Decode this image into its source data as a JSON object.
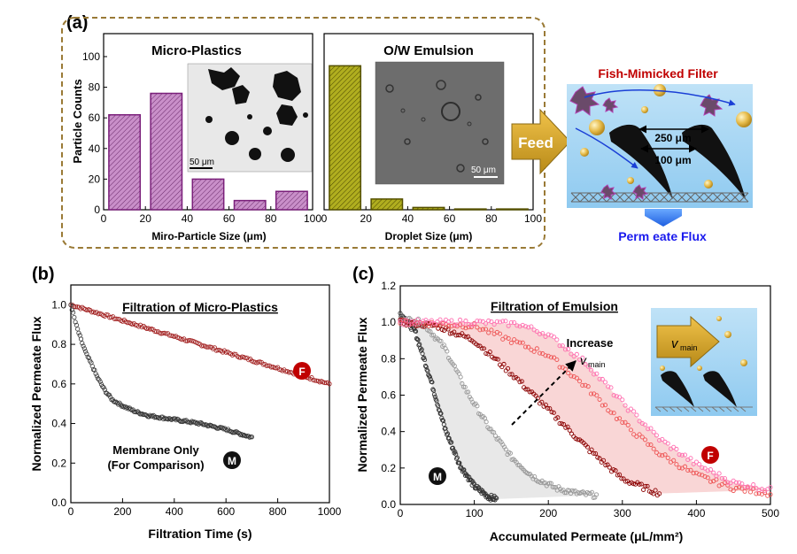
{
  "labels": {
    "a": "(a)",
    "b": "(b)",
    "c": "(c)"
  },
  "chart_data": [
    {
      "type": "bar",
      "title": "Micro-Plastics",
      "xlabel": "Miro-Particle Size (μm)",
      "ylabel": "Particle Counts",
      "xlim": [
        0,
        100
      ],
      "ylim": [
        0,
        115
      ],
      "xticks": [
        "0",
        "20",
        "40",
        "60",
        "80",
        "100"
      ],
      "yticks": [
        "0",
        "20",
        "40",
        "60",
        "80",
        "100"
      ],
      "categories": [
        "10",
        "30",
        "50",
        "70",
        "90"
      ],
      "values": [
        62,
        76,
        20,
        6,
        12
      ],
      "bar_color": "#c98fc9",
      "edge_color": "#7a1f7a",
      "inset_scale": "50 μm"
    },
    {
      "type": "bar",
      "title": "O/W Emulsion",
      "xlabel": "Droplet Size (μm)",
      "xlim": [
        0,
        100
      ],
      "ylim": [
        0,
        115
      ],
      "xticks": [
        "0",
        "20",
        "40",
        "60",
        "80",
        "100"
      ],
      "categories": [
        "10",
        "30",
        "50",
        "70",
        "90"
      ],
      "values": [
        94,
        7,
        1.5,
        0.5,
        0.5
      ],
      "bar_color": "#b0ae1f",
      "edge_color": "#555000",
      "inset_scale": "50 μm"
    },
    {
      "type": "line",
      "title": "Filtration of Micro-Plastics",
      "xlabel": "Filtration Time (s)",
      "ylabel": "Normalized Permeate Flux",
      "xlim": [
        0,
        1000
      ],
      "ylim": [
        0,
        1.1
      ],
      "xticks": [
        "0",
        "200",
        "400",
        "600",
        "800",
        "1000"
      ],
      "yticks": [
        "0.0",
        "0.2",
        "0.4",
        "0.6",
        "0.8",
        "1.0"
      ],
      "series": [
        {
          "name": "F",
          "color": "#a01c1c",
          "x": [
            0,
            100,
            200,
            300,
            400,
            500,
            600,
            700,
            800,
            900,
            1000
          ],
          "y": [
            1.0,
            0.96,
            0.92,
            0.88,
            0.84,
            0.8,
            0.76,
            0.72,
            0.68,
            0.64,
            0.6
          ]
        },
        {
          "name": "M",
          "color": "#333333",
          "x": [
            0,
            20,
            40,
            60,
            80,
            100,
            130,
            160,
            200,
            250,
            300,
            400,
            500,
            600,
            700
          ],
          "y": [
            1.0,
            0.9,
            0.82,
            0.75,
            0.7,
            0.64,
            0.57,
            0.52,
            0.49,
            0.46,
            0.44,
            0.42,
            0.4,
            0.37,
            0.33
          ]
        }
      ],
      "annotation": [
        "Membrane Only",
        "(For Comparison)"
      ]
    },
    {
      "type": "scatter",
      "title": "Filtration of Emulsion",
      "xlabel": "Accumulated Permeate (μL/mm²)",
      "ylabel": "Normalized Permeate Flux",
      "xlim": [
        0,
        500
      ],
      "ylim": [
        0,
        1.2
      ],
      "xticks": [
        "0",
        "100",
        "200",
        "300",
        "400",
        "500"
      ],
      "yticks": [
        "0.0",
        "0.2",
        "0.4",
        "0.6",
        "0.8",
        "1.0",
        "1.2"
      ],
      "series": [
        {
          "name": "M",
          "color": "#333333",
          "x": [
            0,
            20,
            40,
            60,
            80,
            100,
            120,
            130
          ],
          "y": [
            1.05,
            0.95,
            0.7,
            0.42,
            0.22,
            0.1,
            0.04,
            0.03
          ]
        },
        {
          "name": "M",
          "color": "#999999",
          "x": [
            0,
            30,
            60,
            90,
            120,
            150,
            180,
            210,
            240,
            265
          ],
          "y": [
            1.02,
            1.0,
            0.86,
            0.62,
            0.42,
            0.26,
            0.15,
            0.09,
            0.06,
            0.05
          ]
        },
        {
          "name": "F",
          "color": "#8b0000",
          "x": [
            0,
            50,
            100,
            150,
            200,
            250,
            300,
            350
          ],
          "y": [
            1.0,
            0.98,
            0.9,
            0.72,
            0.52,
            0.32,
            0.14,
            0.06
          ]
        },
        {
          "name": "F",
          "color": "#ee5555",
          "x": [
            0,
            100,
            200,
            250,
            300,
            350,
            400,
            450,
            500
          ],
          "y": [
            1.0,
            0.98,
            0.82,
            0.65,
            0.45,
            0.28,
            0.16,
            0.09,
            0.06
          ]
        },
        {
          "name": "F",
          "color": "#ff6fb0",
          "x": [
            0,
            100,
            160,
            200,
            250,
            300,
            350,
            400,
            450,
            500
          ],
          "y": [
            1.0,
            1.0,
            0.99,
            0.93,
            0.78,
            0.56,
            0.36,
            0.22,
            0.12,
            0.08
          ]
        }
      ],
      "annotation": [
        "Increase",
        "v"
      ],
      "annotation_sub": "main",
      "inset_label": "v",
      "inset_label_sub": "main"
    }
  ],
  "diagram": {
    "feed": "Feed",
    "title": "Fish-Mimicked Filter",
    "dim1": "250 μm",
    "dim2": "100 μm",
    "permeate": "Perm eate Flux"
  }
}
